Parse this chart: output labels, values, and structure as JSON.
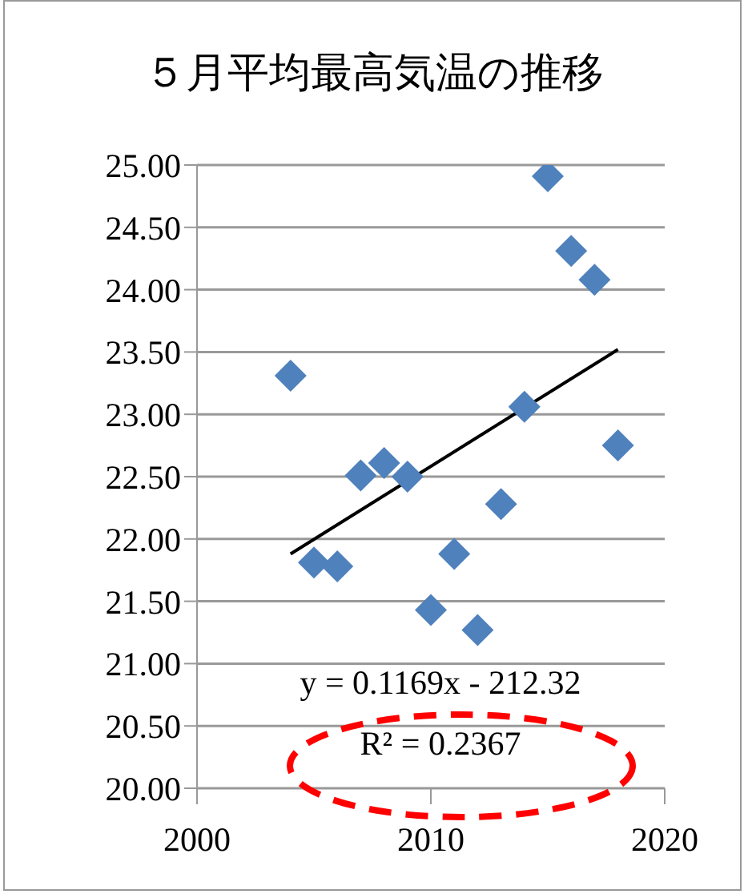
{
  "chart_data": {
    "type": "scatter",
    "title": "５月平均最高気温の推移",
    "xlim": [
      2000,
      2020
    ],
    "xticks": [
      2000,
      2010,
      2020
    ],
    "ylim": [
      20,
      25
    ],
    "yticks": [
      {
        "value": 20,
        "label": "20.00"
      },
      {
        "value": 20.5,
        "label": "20.50"
      },
      {
        "value": 21,
        "label": "21.00"
      },
      {
        "value": 21.5,
        "label": "21.50"
      },
      {
        "value": 22,
        "label": "22.00"
      },
      {
        "value": 22.5,
        "label": "22.50"
      },
      {
        "value": 23,
        "label": "23.00"
      },
      {
        "value": 23.5,
        "label": "23.50"
      },
      {
        "value": 24,
        "label": "24.00"
      },
      {
        "value": 24.5,
        "label": "24.50"
      },
      {
        "value": 25,
        "label": "25.00"
      }
    ],
    "grid": "y",
    "series": [
      {
        "marker": "diamond",
        "color": "#4f81bd",
        "x": [
          2004,
          2005,
          2006,
          2007,
          2008,
          2009,
          2010,
          2011,
          2012,
          2013,
          2014,
          2015,
          2016,
          2017,
          2018
        ],
        "values": [
          23.31,
          21.81,
          21.78,
          22.51,
          22.61,
          22.5,
          21.43,
          21.88,
          21.27,
          22.28,
          23.06,
          24.91,
          24.31,
          24.08,
          22.75
        ]
      },
      {
        "type": "line",
        "color": "#000000",
        "x": [
          2004,
          2018
        ],
        "values": [
          21.88,
          23.52
        ]
      }
    ],
    "annotations": [
      "y = 0.1169x - 212.32",
      "R² = 0.2367"
    ]
  }
}
